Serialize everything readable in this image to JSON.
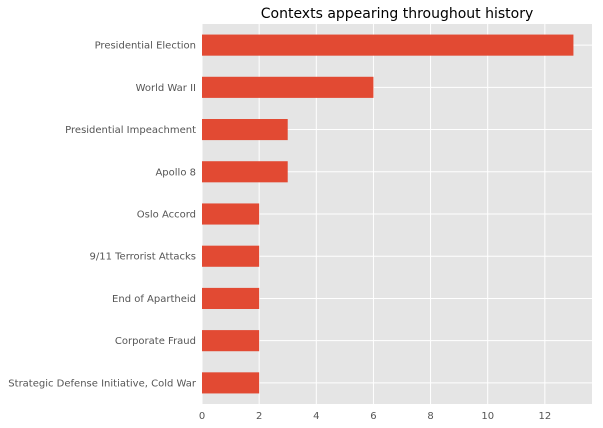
{
  "chart_data": {
    "type": "bar",
    "orientation": "horizontal",
    "title": "Contexts appearing throughout history",
    "xlabel": "",
    "ylabel": "",
    "categories": [
      "Presidential Election",
      "World War II",
      "Presidential Impeachment",
      "Apollo 8",
      "Oslo Accord",
      "9/11 Terrorist Attacks",
      "End of Apartheid",
      "Corporate Fraud",
      "Strategic Defense Initiative, Cold War"
    ],
    "values": [
      13,
      6,
      3,
      3,
      2,
      2,
      2,
      2,
      2
    ],
    "xlim": [
      0,
      13.65
    ],
    "xticks": [
      0,
      2,
      4,
      6,
      8,
      10,
      12
    ],
    "grid": true,
    "legend": "none",
    "colors": {
      "bar": "#e24a33",
      "plot_background": "#e5e5e5",
      "grid": "#ffffff",
      "tick_text": "#555555",
      "title_text": "#000000"
    }
  }
}
